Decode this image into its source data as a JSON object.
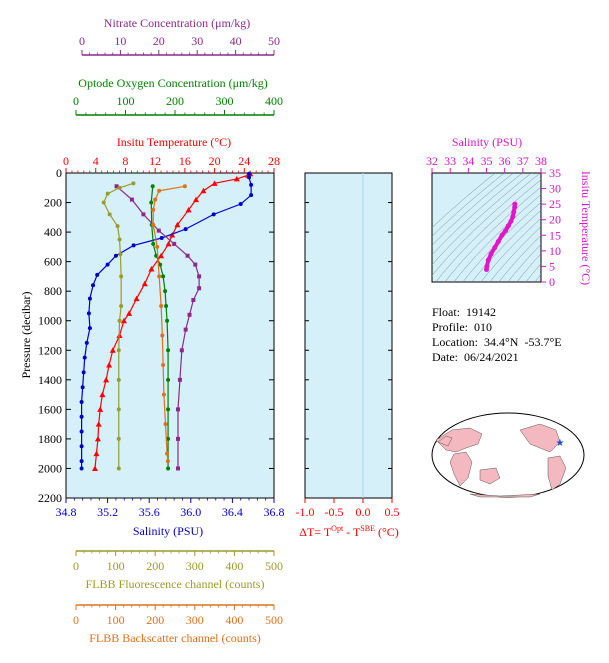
{
  "chart_data": {
    "type": "scatter",
    "profile_panel": {
      "yaxis": {
        "label": "Pressure (decibar)",
        "lim": [
          0,
          2200
        ],
        "ticks": [
          "0",
          "200",
          "400",
          "600",
          "800",
          "1000",
          "1200",
          "1400",
          "1600",
          "1800",
          "2000",
          "2200"
        ]
      },
      "axes": {
        "nitrate": {
          "label": "Nitrate Concentration (μm/kg)",
          "lim": [
            0,
            50
          ],
          "ticks": [
            "0",
            "10",
            "20",
            "30",
            "40",
            "50"
          ],
          "color": "#8b2a8b"
        },
        "oxygen": {
          "label": "Optode Oxygen Concentration (μm/kg)",
          "lim": [
            0,
            400
          ],
          "ticks": [
            "0",
            "100",
            "200",
            "300",
            "400"
          ],
          "color": "#008000"
        },
        "temperature": {
          "label": "Insitu Temperature (°C)",
          "lim": [
            0,
            28
          ],
          "ticks": [
            "0",
            "4",
            "8",
            "12",
            "16",
            "20",
            "24",
            "28"
          ],
          "color": "#ff0000"
        },
        "salinity": {
          "label": "Salinity (PSU)",
          "lim": [
            34.8,
            36.8
          ],
          "ticks": [
            "34.8",
            "35.2",
            "35.6",
            "36.0",
            "36.4",
            "36.8"
          ],
          "color": "#0000cd"
        },
        "fluorescence": {
          "label": "FLBB Fluorescence channel (counts)",
          "lim": [
            0,
            500
          ],
          "ticks": [
            "0",
            "100",
            "200",
            "300",
            "400",
            "500"
          ],
          "color": "#9b9b2a"
        },
        "backscatter": {
          "label": "FLBB Backscatter channel (counts)",
          "lim": [
            0,
            500
          ],
          "ticks": [
            "0",
            "100",
            "200",
            "300",
            "400",
            "500"
          ],
          "color": "#e0701a"
        }
      },
      "series": [
        {
          "key": "temperature",
          "color": "#ff0000",
          "marker": "triangle",
          "points": [
            [
              24.8,
              5
            ],
            [
              24.5,
              15
            ],
            [
              23,
              40
            ],
            [
              20,
              70
            ],
            [
              18.5,
              120
            ],
            [
              17.5,
              180
            ],
            [
              16.5,
              250
            ],
            [
              15,
              350
            ],
            [
              14.3,
              420
            ],
            [
              13.8,
              480
            ],
            [
              12.8,
              560
            ],
            [
              11.5,
              650
            ],
            [
              10.6,
              750
            ],
            [
              9.5,
              850
            ],
            [
              8.5,
              950
            ],
            [
              7.8,
              1000
            ],
            [
              7.2,
              1100
            ],
            [
              6.3,
              1200
            ],
            [
              5.8,
              1300
            ],
            [
              5.4,
              1400
            ],
            [
              4.9,
              1500
            ],
            [
              4.6,
              1600
            ],
            [
              4.4,
              1700
            ],
            [
              4.3,
              1800
            ],
            [
              4.1,
              1900
            ],
            [
              3.9,
              2000
            ]
          ]
        },
        {
          "key": "salinity",
          "color": "#0000cd",
          "marker": "circle",
          "points": [
            [
              36.56,
              5
            ],
            [
              36.56,
              30
            ],
            [
              36.58,
              80
            ],
            [
              36.58,
              150
            ],
            [
              36.48,
              210
            ],
            [
              36.22,
              280
            ],
            [
              35.95,
              380
            ],
            [
              35.72,
              440
            ],
            [
              35.45,
              490
            ],
            [
              35.28,
              560
            ],
            [
              35.2,
              620
            ],
            [
              35.1,
              690
            ],
            [
              35.06,
              760
            ],
            [
              35.03,
              850
            ],
            [
              35.02,
              950
            ],
            [
              35.03,
              1050
            ],
            [
              35.0,
              1150
            ],
            [
              34.98,
              1250
            ],
            [
              34.97,
              1350
            ],
            [
              34.96,
              1450
            ],
            [
              34.95,
              1550
            ],
            [
              34.95,
              1650
            ],
            [
              34.95,
              1750
            ],
            [
              34.95,
              1850
            ],
            [
              34.95,
              1950
            ],
            [
              34.95,
              2000
            ]
          ]
        },
        {
          "key": "nitrate",
          "color": "#8b2a8b",
          "marker": "square",
          "points": [
            [
              9,
              90
            ],
            [
              13,
              180
            ],
            [
              16,
              280
            ],
            [
              20,
              390
            ],
            [
              24,
              480
            ],
            [
              27.5,
              560
            ],
            [
              29.5,
              620
            ],
            [
              30.5,
              700
            ],
            [
              30.5,
              780
            ],
            [
              29,
              860
            ],
            [
              28,
              960
            ],
            [
              27,
              1060
            ],
            [
              26,
              1200
            ],
            [
              25.5,
              1400
            ],
            [
              25,
              1600
            ],
            [
              25,
              1800
            ],
            [
              25,
              2000
            ]
          ]
        },
        {
          "key": "oxygen",
          "color": "#008000",
          "marker": "circle",
          "points": [
            [
              155,
              90
            ],
            [
              152,
              200
            ],
            [
              153,
              350
            ],
            [
              156,
              480
            ],
            [
              162,
              560
            ],
            [
              170,
              620
            ],
            [
              176,
              700
            ],
            [
              180,
              800
            ],
            [
              182,
              900
            ],
            [
              184,
              1000
            ],
            [
              186,
              1200
            ],
            [
              186,
              1400
            ],
            [
              186,
              1600
            ],
            [
              186,
              1800
            ],
            [
              186,
              2000
            ]
          ]
        },
        {
          "key": "fluorescence",
          "color": "#9b9b2a",
          "marker": "circle",
          "points": [
            [
              145,
              70
            ],
            [
              110,
              100
            ],
            [
              80,
              140
            ],
            [
              70,
              200
            ],
            [
              85,
              280
            ],
            [
              105,
              360
            ],
            [
              110,
              450
            ],
            [
              112,
              550
            ],
            [
              114,
              700
            ],
            [
              114,
              900
            ],
            [
              110,
              1000
            ],
            [
              108,
              1200
            ],
            [
              108,
              1400
            ],
            [
              108,
              1600
            ],
            [
              108,
              1800
            ],
            [
              108,
              2000
            ]
          ]
        },
        {
          "key": "backscatter",
          "color": "#e0701a",
          "marker": "circle",
          "points": [
            [
              275,
              90
            ],
            [
              210,
              120
            ],
            [
              200,
              180
            ],
            [
              195,
              250
            ],
            [
              195,
              350
            ],
            [
              205,
              500
            ],
            [
              210,
              700
            ],
            [
              215,
              900
            ],
            [
              218,
              1100
            ],
            [
              220,
              1300
            ],
            [
              222,
              1500
            ],
            [
              226,
              1700
            ],
            [
              230,
              1900
            ],
            [
              232,
              1950
            ]
          ]
        }
      ]
    },
    "delta_panel": {
      "xlabel_main": "ΔT= T",
      "xlabel_sup1": "Opt",
      "xlabel_mid": " - T",
      "xlabel_sup2": "SBE",
      "xlabel_unit": " (°C)",
      "xlim": [
        -1.0,
        0.5
      ],
      "ticks": [
        "-1.0",
        "-0.5",
        "0.0",
        "0.5"
      ]
    },
    "ts_panel": {
      "xlabel": "Salinity (PSU)",
      "xlim": [
        32,
        38
      ],
      "xticks": [
        "32",
        "33",
        "34",
        "35",
        "36",
        "37",
        "38"
      ],
      "ylabel": "Insitu Temperature (°C)",
      "ylim": [
        0,
        35
      ],
      "yticks": [
        "0",
        "5",
        "10",
        "15",
        "20",
        "25",
        "30",
        "35"
      ],
      "points": [
        [
          35.0,
          4
        ],
        [
          35.02,
          5
        ],
        [
          35.1,
          7
        ],
        [
          35.25,
          9
        ],
        [
          35.45,
          11
        ],
        [
          35.65,
          13
        ],
        [
          35.85,
          15
        ],
        [
          36.05,
          16.5
        ],
        [
          36.2,
          18
        ],
        [
          36.35,
          19.5
        ],
        [
          36.45,
          21
        ],
        [
          36.5,
          22.5
        ],
        [
          36.55,
          24
        ],
        [
          36.56,
          25
        ]
      ]
    }
  },
  "info": {
    "float": "Float:  19142",
    "profile": "Profile:  010",
    "location": "Location:  34.4°N  -53.7°E",
    "date": "Date:  06/24/2021"
  },
  "colors": {
    "panel_bg": "#d5f0f8",
    "map_land": "#f4b8c0",
    "map_marker": "#1a4fd8"
  }
}
